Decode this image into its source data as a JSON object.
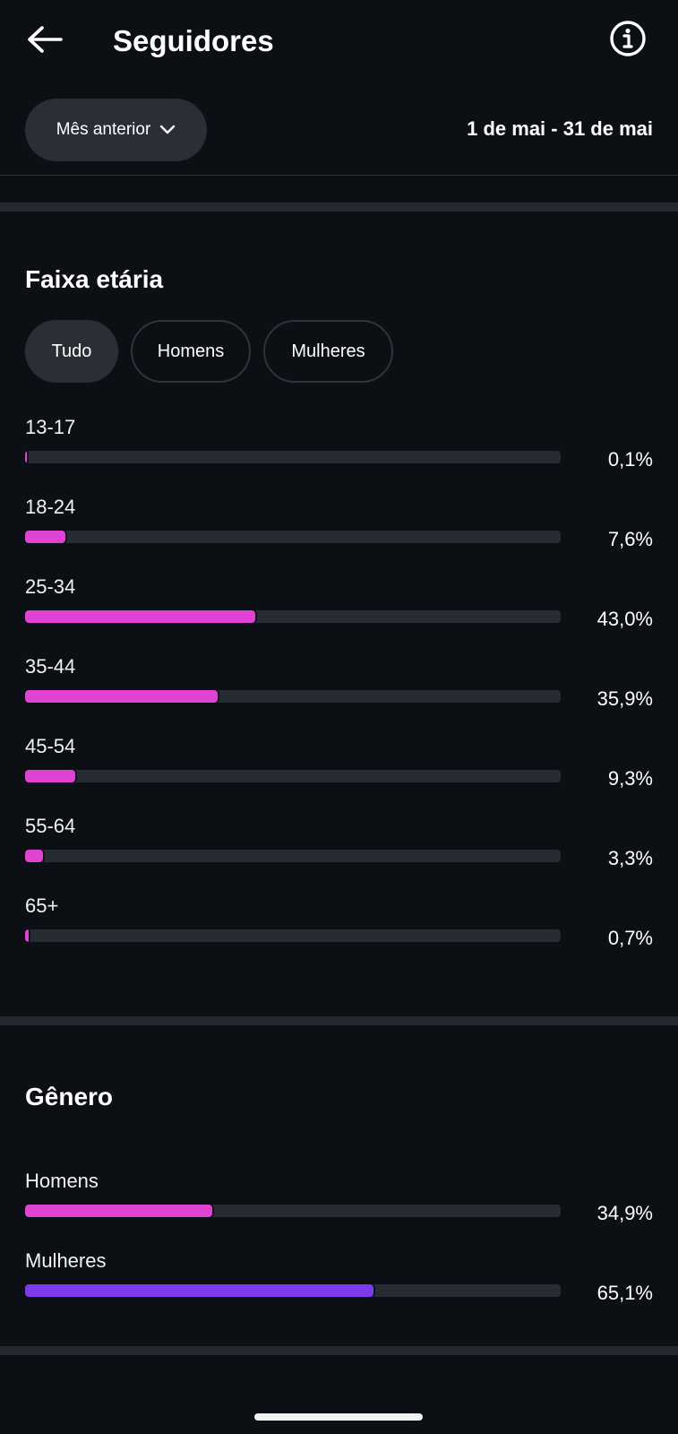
{
  "header": {
    "title": "Seguidores",
    "back_icon": "arrow-left-icon",
    "info_icon": "info-icon"
  },
  "filters": {
    "period_label": "Mês anterior",
    "period_icon": "chevron-down-icon",
    "date_range": "1 de mai - 31 de mai"
  },
  "age": {
    "title": "Faixa etária",
    "tabs": [
      {
        "label": "Tudo",
        "active": true
      },
      {
        "label": "Homens",
        "active": false
      },
      {
        "label": "Mulheres",
        "active": false
      }
    ],
    "bars": [
      {
        "label": "13-17",
        "value_text": "0,1%",
        "percent": 0.1
      },
      {
        "label": "18-24",
        "value_text": "7,6%",
        "percent": 7.6
      },
      {
        "label": "25-34",
        "value_text": "43,0%",
        "percent": 43.0
      },
      {
        "label": "35-44",
        "value_text": "35,9%",
        "percent": 35.9
      },
      {
        "label": "45-54",
        "value_text": "9,3%",
        "percent": 9.3
      },
      {
        "label": "55-64",
        "value_text": "3,3%",
        "percent": 3.3
      },
      {
        "label": "65+",
        "value_text": "0,7%",
        "percent": 0.7
      }
    ]
  },
  "gender": {
    "title": "Gênero",
    "bars": [
      {
        "label": "Homens",
        "value_text": "34,9%",
        "percent": 34.9
      },
      {
        "label": "Mulheres",
        "value_text": "65,1%",
        "percent": 65.1
      }
    ]
  },
  "colors": {
    "background": "#0c0f14",
    "track": "#272b32",
    "age_fill": "#e043d4",
    "men_fill": "#e043d4",
    "women_fill": "#7c3aed"
  }
}
